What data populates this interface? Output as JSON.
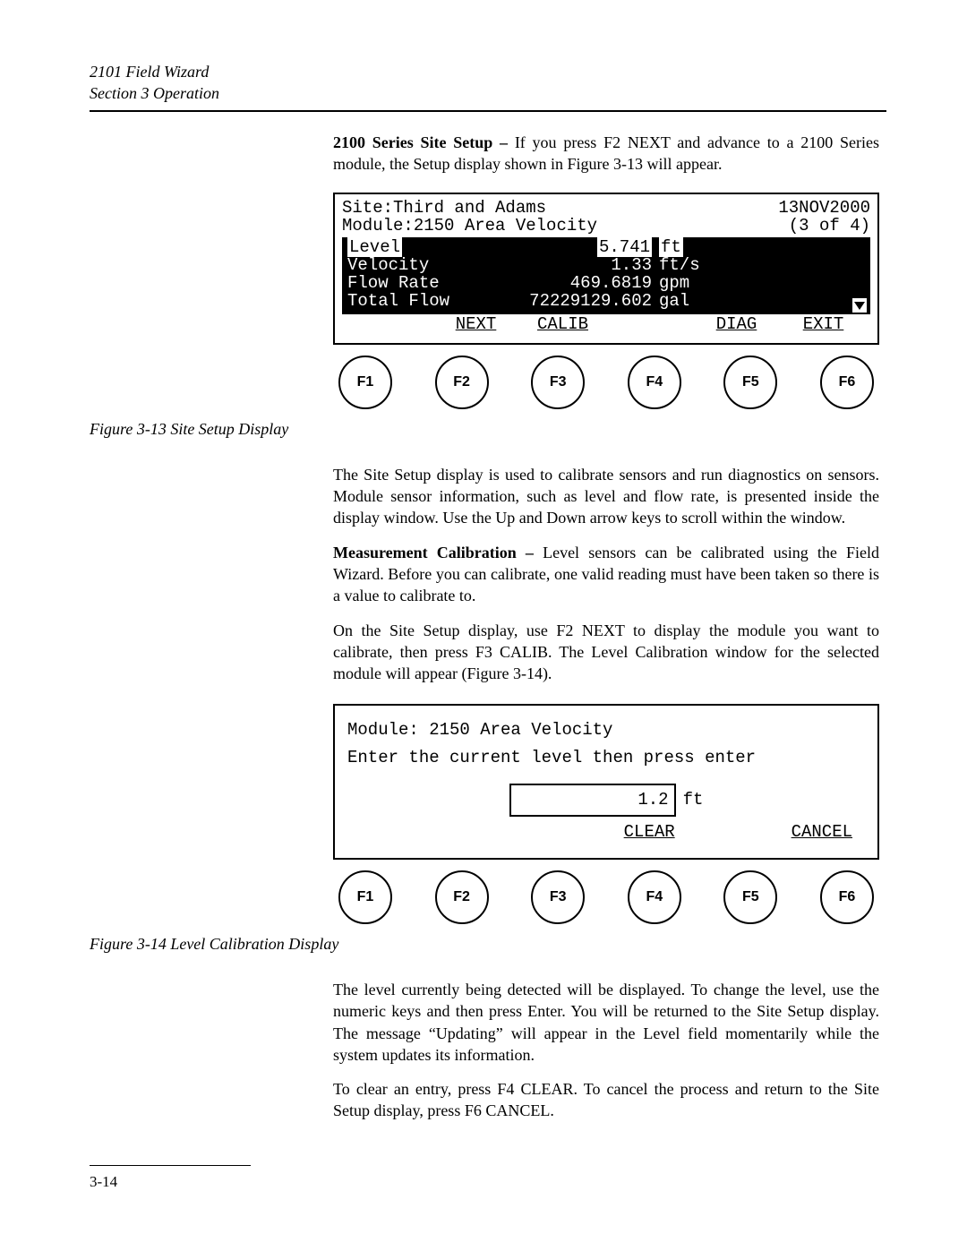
{
  "header": {
    "line1": "2101 Field Wizard",
    "line2": "Section 3   Operation"
  },
  "para1_bold": "2100 Series Site Setup – ",
  "para1_rest": "If you press F2 NEXT and advance to a 2100 Series module, the Setup display shown in Figure 3-13 will appear.",
  "disp1": {
    "site_label": "Site:",
    "site_value": "Third and Adams",
    "date": "13NOV2000",
    "module_label": "Module:",
    "module_value": "2150 Area Velocity",
    "counter": "(3 of 4)",
    "rows": [
      {
        "label": "Level",
        "value": "5.741",
        "unit": "ft",
        "highlight": true
      },
      {
        "label": "Velocity",
        "value": "1.33",
        "unit": "ft/s",
        "highlight": false
      },
      {
        "label": "Flow Rate",
        "value": "469.6819",
        "unit": "gpm",
        "highlight": false
      },
      {
        "label": "Total Flow",
        "value": "72229129.602",
        "unit": "gal",
        "highlight": false
      }
    ],
    "softkeys": [
      "",
      "NEXT",
      "CALIB",
      "",
      "DIAG",
      "EXIT"
    ]
  },
  "fig1_caption": "Figure 3-13  Site Setup Display",
  "para2": "The Site Setup display is used to calibrate sensors and run diagnostics on sensors. Module sensor information, such as level and flow rate, is presented inside the display window. Use the Up and Down arrow keys to scroll within the window.",
  "para3_bold": "Measurement Calibration – ",
  "para3_rest": "Level sensors can be calibrated using the Field Wizard. Before you can calibrate, one valid reading must have been taken so there is a value to calibrate to.",
  "para4": "On the Site Setup display, use F2 NEXT to display the module you want to calibrate, then press F3 CALIB. The Level Calibration window for the selected module will appear (Figure 3-14).",
  "disp2": {
    "line1": "Module: 2150 Area Velocity",
    "line2": "Enter the current level then press enter",
    "input_value": "1.2",
    "input_unit": "ft",
    "softkeys": [
      "",
      "",
      "",
      "CLEAR",
      "",
      "CANCEL"
    ]
  },
  "fig2_caption": "Figure 3-14  Level Calibration Display",
  "para5": "The level currently being detected will be displayed. To change the level, use the numeric keys and then press Enter. You will be returned to the Site Setup display. The message “Updating” will appear in the Level field momentarily while the system updates its information.",
  "para6": "To clear an entry, press F4 CLEAR. To cancel the process and return to the Site Setup display, press F6 CANCEL.",
  "fkeys": [
    "F1",
    "F2",
    "F3",
    "F4",
    "F5",
    "F6"
  ],
  "page_number": "3-14",
  "colors": {
    "text": "#000000",
    "bg": "#ffffff",
    "inverse_bg": "#000000",
    "inverse_fg": "#ffffff"
  }
}
